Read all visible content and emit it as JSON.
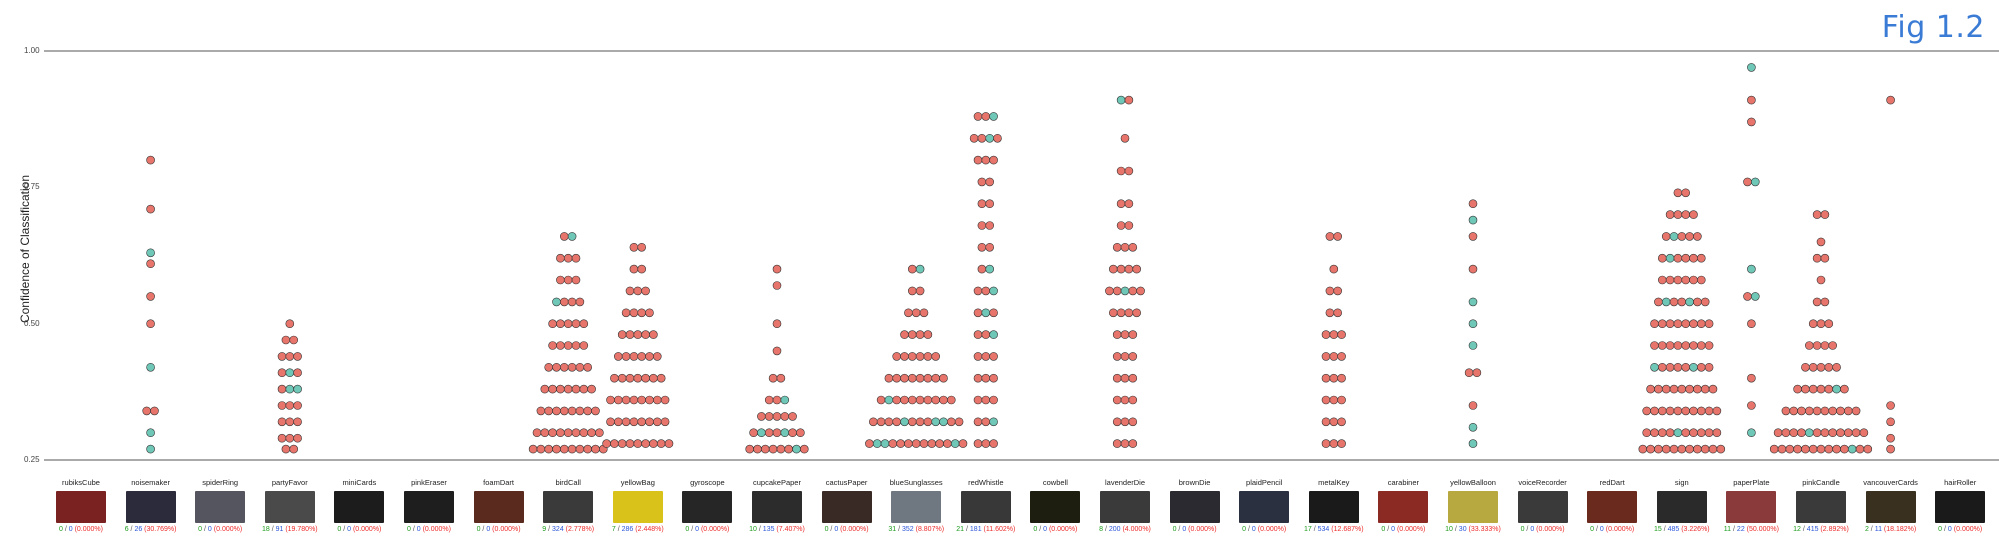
{
  "figure_label": "Fig 1.2",
  "chart_data": {
    "type": "scatter",
    "subtype": "beeswarm",
    "ylabel": "Confidence of Classification",
    "ylim": [
      0.25,
      1.0
    ],
    "yticks": [
      "0.25",
      "0.50",
      "0.75",
      "1.00"
    ],
    "colors": {
      "incorrect": "#e8756b",
      "correct": "#6fc8b7",
      "outline": "#333333",
      "axis": "#555555"
    },
    "categories": [
      {
        "name": "rubiksCube",
        "correct": "0",
        "total": "0",
        "pct": "(0.000%)",
        "thumb": "#7a2222",
        "swarm": []
      },
      {
        "name": "noisemaker",
        "correct": "6",
        "total": "26",
        "pct": "(30.769%)",
        "thumb": "#2b2b3c",
        "swarm": [
          [
            0.8,
            1
          ],
          [
            0.71,
            1
          ],
          [
            0.63,
            1
          ],
          [
            0.61,
            1
          ],
          [
            0.55,
            1
          ],
          [
            0.5,
            1
          ],
          [
            0.42,
            1
          ],
          [
            0.34,
            2
          ],
          [
            0.3,
            1
          ],
          [
            0.27,
            1
          ]
        ]
      },
      {
        "name": "spiderRing",
        "correct": "0",
        "total": "0",
        "pct": "(0.000%)",
        "thumb": "#555560",
        "swarm": []
      },
      {
        "name": "partyFavor",
        "correct": "18",
        "total": "91",
        "pct": "(19.780%)",
        "thumb": "#4a4a4a",
        "swarm": [
          [
            0.5,
            1
          ],
          [
            0.47,
            2
          ],
          [
            0.44,
            3
          ],
          [
            0.41,
            3
          ],
          [
            0.38,
            3
          ],
          [
            0.35,
            3
          ],
          [
            0.32,
            3
          ],
          [
            0.29,
            3
          ],
          [
            0.27,
            2
          ]
        ]
      },
      {
        "name": "miniCards",
        "correct": "0",
        "total": "0",
        "pct": "(0.000%)",
        "thumb": "#1c1c1c",
        "swarm": []
      },
      {
        "name": "pinkEraser",
        "correct": "0",
        "total": "0",
        "pct": "(0.000%)",
        "thumb": "#1e1e1e",
        "swarm": []
      },
      {
        "name": "foamDart",
        "correct": "0",
        "total": "0",
        "pct": "(0.000%)",
        "thumb": "#5a2a1e",
        "swarm": []
      },
      {
        "name": "birdCall",
        "correct": "9",
        "total": "324",
        "pct": "(2.778%)",
        "thumb": "#3a3a3a",
        "swarm": [
          [
            0.66,
            2
          ],
          [
            0.62,
            3
          ],
          [
            0.58,
            3
          ],
          [
            0.54,
            4
          ],
          [
            0.5,
            5
          ],
          [
            0.46,
            5
          ],
          [
            0.42,
            6
          ],
          [
            0.38,
            7
          ],
          [
            0.34,
            8
          ],
          [
            0.3,
            9
          ],
          [
            0.27,
            10
          ]
        ]
      },
      {
        "name": "yellowBag",
        "correct": "7",
        "total": "286",
        "pct": "(2.448%)",
        "thumb": "#d9c21a",
        "swarm": [
          [
            0.64,
            2
          ],
          [
            0.6,
            2
          ],
          [
            0.56,
            3
          ],
          [
            0.52,
            4
          ],
          [
            0.48,
            5
          ],
          [
            0.44,
            6
          ],
          [
            0.4,
            7
          ],
          [
            0.36,
            8
          ],
          [
            0.32,
            8
          ],
          [
            0.28,
            9
          ]
        ]
      },
      {
        "name": "gyroscope",
        "correct": "0",
        "total": "0",
        "pct": "(0.000%)",
        "thumb": "#262626",
        "swarm": []
      },
      {
        "name": "cupcakePaper",
        "correct": "10",
        "total": "135",
        "pct": "(7.407%)",
        "thumb": "#2c2c2c",
        "swarm": [
          [
            0.6,
            1
          ],
          [
            0.57,
            1
          ],
          [
            0.5,
            1
          ],
          [
            0.45,
            1
          ],
          [
            0.4,
            2
          ],
          [
            0.36,
            3
          ],
          [
            0.33,
            5
          ],
          [
            0.3,
            7
          ],
          [
            0.27,
            8
          ]
        ]
      },
      {
        "name": "cactusPaper",
        "correct": "0",
        "total": "0",
        "pct": "(0.000%)",
        "thumb": "#3a2a26",
        "swarm": []
      },
      {
        "name": "blueSunglasses",
        "correct": "31",
        "total": "352",
        "pct": "(8.807%)",
        "thumb": "#6f7780",
        "swarm": [
          [
            0.6,
            2
          ],
          [
            0.56,
            2
          ],
          [
            0.52,
            3
          ],
          [
            0.48,
            4
          ],
          [
            0.44,
            6
          ],
          [
            0.4,
            8
          ],
          [
            0.36,
            10
          ],
          [
            0.32,
            12
          ],
          [
            0.28,
            13
          ]
        ]
      },
      {
        "name": "redWhistle",
        "correct": "21",
        "total": "181",
        "pct": "(11.602%)",
        "thumb": "#383838",
        "swarm": [
          [
            0.88,
            3
          ],
          [
            0.84,
            4
          ],
          [
            0.8,
            3
          ],
          [
            0.76,
            2
          ],
          [
            0.72,
            2
          ],
          [
            0.68,
            2
          ],
          [
            0.64,
            2
          ],
          [
            0.6,
            2
          ],
          [
            0.56,
            3
          ],
          [
            0.52,
            3
          ],
          [
            0.48,
            3
          ],
          [
            0.44,
            3
          ],
          [
            0.4,
            3
          ],
          [
            0.36,
            3
          ],
          [
            0.32,
            3
          ],
          [
            0.28,
            3
          ]
        ]
      },
      {
        "name": "cowbell",
        "correct": "0",
        "total": "0",
        "pct": "(0.000%)",
        "thumb": "#1e1e10",
        "swarm": []
      },
      {
        "name": "lavenderDie",
        "correct": "8",
        "total": "200",
        "pct": "(4.000%)",
        "thumb": "#3a3a3a",
        "swarm": [
          [
            0.91,
            2
          ],
          [
            0.84,
            1
          ],
          [
            0.78,
            2
          ],
          [
            0.72,
            2
          ],
          [
            0.68,
            2
          ],
          [
            0.64,
            3
          ],
          [
            0.6,
            4
          ],
          [
            0.56,
            5
          ],
          [
            0.52,
            4
          ],
          [
            0.48,
            3
          ],
          [
            0.44,
            3
          ],
          [
            0.4,
            3
          ],
          [
            0.36,
            3
          ],
          [
            0.32,
            3
          ],
          [
            0.28,
            3
          ]
        ]
      },
      {
        "name": "brownDie",
        "correct": "0",
        "total": "0",
        "pct": "(0.000%)",
        "thumb": "#2a2a30",
        "swarm": []
      },
      {
        "name": "plaidPencil",
        "correct": "0",
        "total": "0",
        "pct": "(0.000%)",
        "thumb": "#2a3040",
        "swarm": []
      },
      {
        "name": "metalKey",
        "correct": "17",
        "total": "534",
        "pct": "(12.687%)",
        "thumb": "#1a1a1a",
        "swarm": [
          [
            0.66,
            2
          ],
          [
            0.6,
            1
          ],
          [
            0.56,
            2
          ],
          [
            0.52,
            2
          ],
          [
            0.48,
            3
          ],
          [
            0.44,
            3
          ],
          [
            0.4,
            3
          ],
          [
            0.36,
            3
          ],
          [
            0.32,
            3
          ],
          [
            0.28,
            3
          ]
        ]
      },
      {
        "name": "carabiner",
        "correct": "0",
        "total": "0",
        "pct": "(0.000%)",
        "thumb": "#8a2a22",
        "swarm": []
      },
      {
        "name": "yellowBalloon",
        "correct": "10",
        "total": "30",
        "pct": "(33.333%)",
        "thumb": "#b8a840",
        "swarm": [
          [
            0.72,
            1
          ],
          [
            0.69,
            1
          ],
          [
            0.66,
            1
          ],
          [
            0.6,
            1
          ],
          [
            0.54,
            1
          ],
          [
            0.5,
            1
          ],
          [
            0.46,
            1
          ],
          [
            0.41,
            2
          ],
          [
            0.35,
            1
          ],
          [
            0.31,
            1
          ],
          [
            0.28,
            1
          ]
        ]
      },
      {
        "name": "voiceRecorder",
        "correct": "0",
        "total": "0",
        "pct": "(0.000%)",
        "thumb": "#3a3a3a",
        "swarm": []
      },
      {
        "name": "redDart",
        "correct": "0",
        "total": "0",
        "pct": "(0.000%)",
        "thumb": "#6a2a1e",
        "swarm": []
      },
      {
        "name": "sign",
        "correct": "15",
        "total": "485",
        "pct": "(3.226%)",
        "thumb": "#2a2a2a",
        "swarm": [
          [
            0.74,
            2
          ],
          [
            0.7,
            4
          ],
          [
            0.66,
            5
          ],
          [
            0.62,
            6
          ],
          [
            0.58,
            6
          ],
          [
            0.54,
            7
          ],
          [
            0.5,
            8
          ],
          [
            0.46,
            8
          ],
          [
            0.42,
            8
          ],
          [
            0.38,
            9
          ],
          [
            0.34,
            10
          ],
          [
            0.3,
            10
          ],
          [
            0.27,
            11
          ]
        ]
      },
      {
        "name": "paperPlate",
        "correct": "11",
        "total": "22",
        "pct": "(50.000%)",
        "thumb": "#8a3a3a",
        "swarm": [
          [
            0.97,
            1
          ],
          [
            0.91,
            1
          ],
          [
            0.87,
            1
          ],
          [
            0.76,
            2
          ],
          [
            0.6,
            1
          ],
          [
            0.55,
            2
          ],
          [
            0.5,
            1
          ],
          [
            0.4,
            1
          ],
          [
            0.35,
            1
          ],
          [
            0.3,
            1
          ]
        ]
      },
      {
        "name": "pinkCandle",
        "correct": "12",
        "total": "415",
        "pct": "(2.892%)",
        "thumb": "#3a3a3a",
        "swarm": [
          [
            0.7,
            2
          ],
          [
            0.65,
            1
          ],
          [
            0.62,
            2
          ],
          [
            0.58,
            1
          ],
          [
            0.54,
            2
          ],
          [
            0.5,
            3
          ],
          [
            0.46,
            4
          ],
          [
            0.42,
            5
          ],
          [
            0.38,
            7
          ],
          [
            0.34,
            10
          ],
          [
            0.3,
            12
          ],
          [
            0.27,
            13
          ]
        ]
      },
      {
        "name": "vancouverCards",
        "correct": "2",
        "total": "11",
        "pct": "(18.182%)",
        "thumb": "#3a3020",
        "swarm": [
          [
            0.91,
            1
          ],
          [
            0.35,
            1
          ],
          [
            0.32,
            1
          ],
          [
            0.29,
            1
          ],
          [
            0.27,
            1
          ]
        ]
      },
      {
        "name": "hairRoller",
        "correct": "0",
        "total": "0",
        "pct": "(0.000%)",
        "thumb": "#1a1a1a",
        "swarm": []
      }
    ]
  }
}
